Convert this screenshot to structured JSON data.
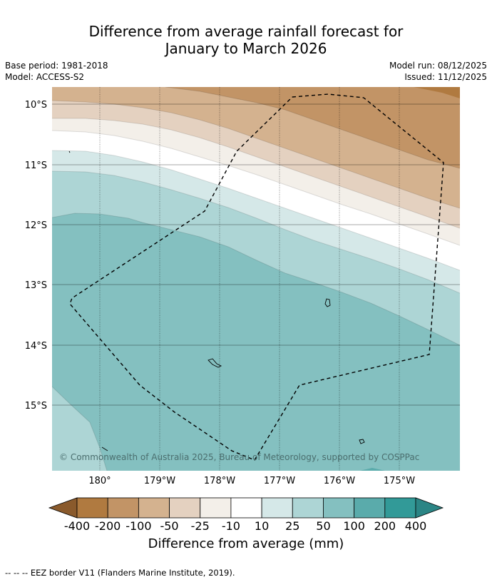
{
  "title_line1": "Difference from average rainfall forecast for",
  "title_line2": "January to March 2026",
  "base_period": "Base period: 1981-2018",
  "model": "Model: ACCESS-S2",
  "model_run": "Model run: 08/12/2025",
  "issued": "Issued: 11/12/2025",
  "copyright": "© Commonwealth of Australia 2025, Bureau of Meteorology, supported by COSPPac",
  "lat_labels": [
    "10°S",
    "11°S",
    "12°S",
    "13°S",
    "14°S",
    "15°S"
  ],
  "lon_labels": [
    "180°",
    "179°W",
    "178°W",
    "177°W",
    "176°W",
    "175°W"
  ],
  "colorbar": {
    "title": "Difference from average (mm)",
    "ticks": [
      "-400",
      "-200",
      "-100",
      "-50",
      "-25",
      "-10",
      "10",
      "25",
      "50",
      "100",
      "200",
      "400"
    ],
    "colors": [
      "#b07a40",
      "#c29466",
      "#d4b28f",
      "#e4d1c0",
      "#f3efe9",
      "#ffffff",
      "#d5e8e8",
      "#add5d5",
      "#84c0c0",
      "#5aabab",
      "#329a98"
    ],
    "low_extend_color": "#8a5a2c",
    "high_extend_color": "#2b8585"
  },
  "footer": "--  --  -- EEZ border V11 (Flanders Marine Institute, 2019)."
}
